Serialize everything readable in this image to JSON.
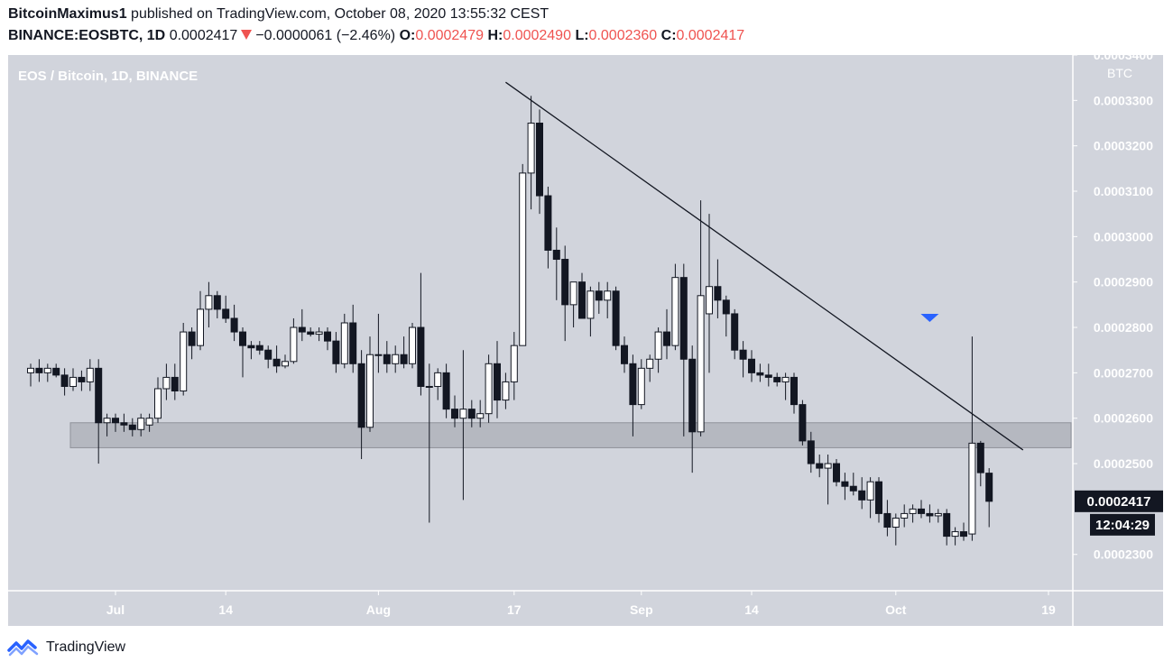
{
  "header": {
    "author": "BitcoinMaximus1",
    "published_text": "published on TradingView.com, October 08, 2020 13:55:32 CEST",
    "symbol": "BINANCE:EOSBTC, 1D",
    "last": "0.0002417",
    "change": "−0.0000061 (−2.46%)",
    "o_label": "O:",
    "o": "0.0002479",
    "h_label": "H:",
    "h": "0.0002490",
    "l_label": "L:",
    "l": "0.0002360",
    "c_label": "C:",
    "c": "0.0002417"
  },
  "footer": {
    "brand": "TradingView"
  },
  "colors": {
    "plot_bg": "#d1d4dc",
    "zone": "#b2b5be",
    "marker": "#2962ff",
    "down": "#ef5350"
  },
  "chart_data": {
    "type": "candlestick",
    "title": "EOS / Bitcoin, 1D, BINANCE",
    "currency_label": "BTC",
    "ylim": [
      0.000222,
      0.00034
    ],
    "y_ticks": [
      "0.0003400",
      "0.0003300",
      "0.0003200",
      "0.0003100",
      "0.0003000",
      "0.0002900",
      "0.0002800",
      "0.0002700",
      "0.0002600",
      "0.0002500",
      "0.0002300"
    ],
    "x_ticks": [
      {
        "label": "Jul",
        "date": "2020-07-01"
      },
      {
        "label": "14",
        "date": "2020-07-14"
      },
      {
        "label": "Aug",
        "date": "2020-08-01"
      },
      {
        "label": "17",
        "date": "2020-08-17"
      },
      {
        "label": "Sep",
        "date": "2020-09-01"
      },
      {
        "label": "14",
        "date": "2020-09-14"
      },
      {
        "label": "Oct",
        "date": "2020-10-01"
      },
      {
        "label": "19",
        "date": "2020-10-19"
      }
    ],
    "price_label": "0.0002417",
    "countdown_label": "12:04:29",
    "support_zone": [
      0.0002535,
      0.000259
    ],
    "trendline": [
      {
        "date": "2020-08-16",
        "price": 0.000334
      },
      {
        "date": "2020-10-16",
        "price": 0.000253
      }
    ],
    "marker": {
      "date": "2020-10-05",
      "price": 0.00028
    },
    "candles": [
      {
        "date": "2020-06-21",
        "o": 0.00027,
        "h": 0.000272,
        "l": 0.000267,
        "c": 0.000271
      },
      {
        "date": "2020-06-22",
        "o": 0.000271,
        "h": 0.000273,
        "l": 0.000268,
        "c": 0.00027
      },
      {
        "date": "2020-06-23",
        "o": 0.00027,
        "h": 0.000272,
        "l": 0.000268,
        "c": 0.000271
      },
      {
        "date": "2020-06-24",
        "o": 0.000271,
        "h": 0.000272,
        "l": 0.000269,
        "c": 0.0002695
      },
      {
        "date": "2020-06-25",
        "o": 0.0002695,
        "h": 0.000271,
        "l": 0.000265,
        "c": 0.000267
      },
      {
        "date": "2020-06-26",
        "o": 0.000267,
        "h": 0.000271,
        "l": 0.000266,
        "c": 0.000269
      },
      {
        "date": "2020-06-27",
        "o": 0.000269,
        "h": 0.0002705,
        "l": 0.000266,
        "c": 0.000268
      },
      {
        "date": "2020-06-28",
        "o": 0.000268,
        "h": 0.000273,
        "l": 0.000266,
        "c": 0.000271
      },
      {
        "date": "2020-06-29",
        "o": 0.000271,
        "h": 0.000273,
        "l": 0.00025,
        "c": 0.000259
      },
      {
        "date": "2020-06-30",
        "o": 0.000259,
        "h": 0.000261,
        "l": 0.000256,
        "c": 0.00026
      },
      {
        "date": "2020-07-01",
        "o": 0.00026,
        "h": 0.000261,
        "l": 0.000257,
        "c": 0.000259
      },
      {
        "date": "2020-07-02",
        "o": 0.000259,
        "h": 0.000261,
        "l": 0.000257,
        "c": 0.0002585
      },
      {
        "date": "2020-07-03",
        "o": 0.0002585,
        "h": 0.00026,
        "l": 0.000256,
        "c": 0.0002575
      },
      {
        "date": "2020-07-04",
        "o": 0.0002575,
        "h": 0.000261,
        "l": 0.000256,
        "c": 0.00026
      },
      {
        "date": "2020-07-05",
        "o": 0.0002585,
        "h": 0.000261,
        "l": 0.000257,
        "c": 0.00026
      },
      {
        "date": "2020-07-06",
        "o": 0.00026,
        "h": 0.000269,
        "l": 0.000259,
        "c": 0.0002665
      },
      {
        "date": "2020-07-07",
        "o": 0.0002665,
        "h": 0.000272,
        "l": 0.000264,
        "c": 0.000269
      },
      {
        "date": "2020-07-08",
        "o": 0.000269,
        "h": 0.000272,
        "l": 0.000264,
        "c": 0.000266
      },
      {
        "date": "2020-07-09",
        "o": 0.000266,
        "h": 0.000281,
        "l": 0.000265,
        "c": 0.000279
      },
      {
        "date": "2020-07-10",
        "o": 0.000279,
        "h": 0.00028,
        "l": 0.000273,
        "c": 0.000276
      },
      {
        "date": "2020-07-11",
        "o": 0.000276,
        "h": 0.000288,
        "l": 0.000275,
        "c": 0.000284
      },
      {
        "date": "2020-07-12",
        "o": 0.000284,
        "h": 0.00029,
        "l": 0.00028,
        "c": 0.000287
      },
      {
        "date": "2020-07-13",
        "o": 0.000287,
        "h": 0.000288,
        "l": 0.000282,
        "c": 0.000284
      },
      {
        "date": "2020-07-14",
        "o": 0.000284,
        "h": 0.000287,
        "l": 0.000281,
        "c": 0.000282
      },
      {
        "date": "2020-07-15",
        "o": 0.000282,
        "h": 0.000285,
        "l": 0.000277,
        "c": 0.000279
      },
      {
        "date": "2020-07-16",
        "o": 0.000279,
        "h": 0.00028,
        "l": 0.000269,
        "c": 0.000276
      },
      {
        "date": "2020-07-17",
        "o": 0.000276,
        "h": 0.000277,
        "l": 0.000273,
        "c": 0.0002755
      },
      {
        "date": "2020-07-18",
        "o": 0.000276,
        "h": 0.000277,
        "l": 0.000274,
        "c": 0.000275
      },
      {
        "date": "2020-07-19",
        "o": 0.000275,
        "h": 0.000276,
        "l": 0.000271,
        "c": 0.000273
      },
      {
        "date": "2020-07-20",
        "o": 0.000273,
        "h": 0.000276,
        "l": 0.00027,
        "c": 0.0002715
      },
      {
        "date": "2020-07-21",
        "o": 0.0002715,
        "h": 0.000274,
        "l": 0.000271,
        "c": 0.0002725
      },
      {
        "date": "2020-07-22",
        "o": 0.0002725,
        "h": 0.000282,
        "l": 0.000272,
        "c": 0.00028
      },
      {
        "date": "2020-07-23",
        "o": 0.00028,
        "h": 0.000284,
        "l": 0.000277,
        "c": 0.000279
      },
      {
        "date": "2020-07-24",
        "o": 0.000279,
        "h": 0.00028,
        "l": 0.000278,
        "c": 0.0002785
      },
      {
        "date": "2020-07-25",
        "o": 0.0002785,
        "h": 0.00028,
        "l": 0.000277,
        "c": 0.000279
      },
      {
        "date": "2020-07-26",
        "o": 0.000279,
        "h": 0.00028,
        "l": 0.000275,
        "c": 0.000277
      },
      {
        "date": "2020-07-27",
        "o": 0.000277,
        "h": 0.000279,
        "l": 0.00027,
        "c": 0.000272
      },
      {
        "date": "2020-07-28",
        "o": 0.000272,
        "h": 0.000283,
        "l": 0.000271,
        "c": 0.000281
      },
      {
        "date": "2020-07-29",
        "o": 0.000281,
        "h": 0.000285,
        "l": 0.00027,
        "c": 0.000272
      },
      {
        "date": "2020-07-30",
        "o": 0.000272,
        "h": 0.000275,
        "l": 0.000251,
        "c": 0.000258
      },
      {
        "date": "2020-07-31",
        "o": 0.000258,
        "h": 0.000278,
        "l": 0.000257,
        "c": 0.000274
      },
      {
        "date": "2020-08-01",
        "o": 0.000274,
        "h": 0.000283,
        "l": 0.00027,
        "c": 0.000274
      },
      {
        "date": "2020-08-02",
        "o": 0.000274,
        "h": 0.000277,
        "l": 0.00027,
        "c": 0.000272
      },
      {
        "date": "2020-08-03",
        "o": 0.000272,
        "h": 0.000276,
        "l": 0.00027,
        "c": 0.000274
      },
      {
        "date": "2020-08-04",
        "o": 0.000274,
        "h": 0.000278,
        "l": 0.000271,
        "c": 0.000272
      },
      {
        "date": "2020-08-05",
        "o": 0.000272,
        "h": 0.000281,
        "l": 0.000271,
        "c": 0.00028
      },
      {
        "date": "2020-08-06",
        "o": 0.00028,
        "h": 0.000292,
        "l": 0.000265,
        "c": 0.000267
      },
      {
        "date": "2020-08-07",
        "o": 0.000267,
        "h": 0.000272,
        "l": 0.000237,
        "c": 0.000267
      },
      {
        "date": "2020-08-08",
        "o": 0.000267,
        "h": 0.000271,
        "l": 0.000264,
        "c": 0.00027
      },
      {
        "date": "2020-08-09",
        "o": 0.00027,
        "h": 0.000272,
        "l": 0.00026,
        "c": 0.000262
      },
      {
        "date": "2020-08-10",
        "o": 0.000262,
        "h": 0.000265,
        "l": 0.000258,
        "c": 0.00026
      },
      {
        "date": "2020-08-11",
        "o": 0.00026,
        "h": 0.000275,
        "l": 0.000242,
        "c": 0.000262
      },
      {
        "date": "2020-08-12",
        "o": 0.000262,
        "h": 0.000264,
        "l": 0.000258,
        "c": 0.00026
      },
      {
        "date": "2020-08-13",
        "o": 0.00026,
        "h": 0.000264,
        "l": 0.000258,
        "c": 0.000261
      },
      {
        "date": "2020-08-14",
        "o": 0.000261,
        "h": 0.000274,
        "l": 0.000259,
        "c": 0.000272
      },
      {
        "date": "2020-08-15",
        "o": 0.000272,
        "h": 0.000277,
        "l": 0.00026,
        "c": 0.000264
      },
      {
        "date": "2020-08-16",
        "o": 0.000264,
        "h": 0.00027,
        "l": 0.000262,
        "c": 0.000268
      },
      {
        "date": "2020-08-17",
        "o": 0.000268,
        "h": 0.000279,
        "l": 0.000264,
        "c": 0.000276
      },
      {
        "date": "2020-08-18",
        "o": 0.000276,
        "h": 0.000316,
        "l": 0.000276,
        "c": 0.000314
      },
      {
        "date": "2020-08-19",
        "o": 0.000314,
        "h": 0.000331,
        "l": 0.000306,
        "c": 0.000325
      },
      {
        "date": "2020-08-20",
        "o": 0.000325,
        "h": 0.000328,
        "l": 0.000305,
        "c": 0.000309
      },
      {
        "date": "2020-08-21",
        "o": 0.000309,
        "h": 0.000311,
        "l": 0.000293,
        "c": 0.000297
      },
      {
        "date": "2020-08-22",
        "o": 0.000297,
        "h": 0.000302,
        "l": 0.000286,
        "c": 0.000295
      },
      {
        "date": "2020-08-23",
        "o": 0.000295,
        "h": 0.000298,
        "l": 0.000277,
        "c": 0.000285
      },
      {
        "date": "2020-08-24",
        "o": 0.000285,
        "h": 0.00029,
        "l": 0.00028,
        "c": 0.00029
      },
      {
        "date": "2020-08-25",
        "o": 0.00029,
        "h": 0.000292,
        "l": 0.000282,
        "c": 0.000282
      },
      {
        "date": "2020-08-26",
        "o": 0.000282,
        "h": 0.000289,
        "l": 0.000278,
        "c": 0.000288
      },
      {
        "date": "2020-08-27",
        "o": 0.000288,
        "h": 0.00029,
        "l": 0.000283,
        "c": 0.000286
      },
      {
        "date": "2020-08-28",
        "o": 0.000286,
        "h": 0.00029,
        "l": 0.000282,
        "c": 0.000288
      },
      {
        "date": "2020-08-29",
        "o": 0.000288,
        "h": 0.000289,
        "l": 0.000275,
        "c": 0.000276
      },
      {
        "date": "2020-08-30",
        "o": 0.000276,
        "h": 0.000278,
        "l": 0.00027,
        "c": 0.000272
      },
      {
        "date": "2020-08-31",
        "o": 0.000272,
        "h": 0.000274,
        "l": 0.000256,
        "c": 0.000263
      },
      {
        "date": "2020-09-01",
        "o": 0.000263,
        "h": 0.000273,
        "l": 0.000262,
        "c": 0.000271
      },
      {
        "date": "2020-09-02",
        "o": 0.000271,
        "h": 0.000274,
        "l": 0.000268,
        "c": 0.000273
      },
      {
        "date": "2020-09-03",
        "o": 0.000273,
        "h": 0.00028,
        "l": 0.00027,
        "c": 0.000279
      },
      {
        "date": "2020-09-04",
        "o": 0.000279,
        "h": 0.000284,
        "l": 0.000273,
        "c": 0.000276
      },
      {
        "date": "2020-09-05",
        "o": 0.000276,
        "h": 0.000294,
        "l": 0.000275,
        "c": 0.000291
      },
      {
        "date": "2020-09-06",
        "o": 0.000291,
        "h": 0.000294,
        "l": 0.000256,
        "c": 0.000273
      },
      {
        "date": "2020-09-07",
        "o": 0.000273,
        "h": 0.000276,
        "l": 0.000248,
        "c": 0.000257
      },
      {
        "date": "2020-09-08",
        "o": 0.000257,
        "h": 0.000308,
        "l": 0.000256,
        "c": 0.000287
      },
      {
        "date": "2020-09-09",
        "o": 0.000283,
        "h": 0.000305,
        "l": 0.00027,
        "c": 0.000289
      },
      {
        "date": "2020-09-10",
        "o": 0.000289,
        "h": 0.000295,
        "l": 0.000282,
        "c": 0.000286
      },
      {
        "date": "2020-09-11",
        "o": 0.000286,
        "h": 0.000287,
        "l": 0.000278,
        "c": 0.000283
      },
      {
        "date": "2020-09-12",
        "o": 0.000283,
        "h": 0.000284,
        "l": 0.000273,
        "c": 0.000275
      },
      {
        "date": "2020-09-13",
        "o": 0.000275,
        "h": 0.000277,
        "l": 0.000269,
        "c": 0.000273
      },
      {
        "date": "2020-09-14",
        "o": 0.000273,
        "h": 0.000275,
        "l": 0.000268,
        "c": 0.00027
      },
      {
        "date": "2020-09-15",
        "o": 0.00027,
        "h": 0.000272,
        "l": 0.000268,
        "c": 0.0002695
      },
      {
        "date": "2020-09-16",
        "o": 0.0002695,
        "h": 0.000272,
        "l": 0.000267,
        "c": 0.000269
      },
      {
        "date": "2020-09-17",
        "o": 0.000269,
        "h": 0.00027,
        "l": 0.000267,
        "c": 0.000268
      },
      {
        "date": "2020-09-18",
        "o": 0.000268,
        "h": 0.00027,
        "l": 0.000264,
        "c": 0.000269
      },
      {
        "date": "2020-09-19",
        "o": 0.000269,
        "h": 0.00027,
        "l": 0.000261,
        "c": 0.000263
      },
      {
        "date": "2020-09-20",
        "o": 0.000263,
        "h": 0.000264,
        "l": 0.000254,
        "c": 0.000255
      },
      {
        "date": "2020-09-21",
        "o": 0.000255,
        "h": 0.000257,
        "l": 0.000248,
        "c": 0.00025
      },
      {
        "date": "2020-09-22",
        "o": 0.00025,
        "h": 0.000252,
        "l": 0.000247,
        "c": 0.000249
      },
      {
        "date": "2020-09-23",
        "o": 0.000249,
        "h": 0.000252,
        "l": 0.000241,
        "c": 0.00025
      },
      {
        "date": "2020-09-24",
        "o": 0.00025,
        "h": 0.000251,
        "l": 0.000245,
        "c": 0.000246
      },
      {
        "date": "2020-09-25",
        "o": 0.000246,
        "h": 0.000248,
        "l": 0.000242,
        "c": 0.000245
      },
      {
        "date": "2020-09-26",
        "o": 0.000245,
        "h": 0.000248,
        "l": 0.000243,
        "c": 0.000244
      },
      {
        "date": "2020-09-27",
        "o": 0.000244,
        "h": 0.000247,
        "l": 0.00024,
        "c": 0.000242
      },
      {
        "date": "2020-09-28",
        "o": 0.000242,
        "h": 0.000247,
        "l": 0.000238,
        "c": 0.000246
      },
      {
        "date": "2020-09-29",
        "o": 0.000246,
        "h": 0.000247,
        "l": 0.000237,
        "c": 0.000239
      },
      {
        "date": "2020-09-30",
        "o": 0.000239,
        "h": 0.000242,
        "l": 0.000234,
        "c": 0.000236
      },
      {
        "date": "2020-10-01",
        "o": 0.000236,
        "h": 0.000239,
        "l": 0.000232,
        "c": 0.000238
      },
      {
        "date": "2020-10-02",
        "o": 0.000238,
        "h": 0.000241,
        "l": 0.000236,
        "c": 0.000239
      },
      {
        "date": "2020-10-03",
        "o": 0.000239,
        "h": 0.000241,
        "l": 0.000237,
        "c": 0.00024
      },
      {
        "date": "2020-10-04",
        "o": 0.00024,
        "h": 0.000242,
        "l": 0.000238,
        "c": 0.000239
      },
      {
        "date": "2020-10-05",
        "o": 0.000239,
        "h": 0.000241,
        "l": 0.000237,
        "c": 0.0002385
      },
      {
        "date": "2020-10-06",
        "o": 0.0002385,
        "h": 0.00024,
        "l": 0.000237,
        "c": 0.000239
      },
      {
        "date": "2020-10-07",
        "o": 0.000239,
        "h": 0.00024,
        "l": 0.000232,
        "c": 0.000234
      },
      {
        "date": "2020-10-08",
        "o": 0.000234,
        "h": 0.000236,
        "l": 0.000232,
        "c": 0.000235
      },
      {
        "date": "2020-10-09",
        "o": 0.000235,
        "h": 0.000237,
        "l": 0.000233,
        "c": 0.000234
      },
      {
        "date": "2020-10-10",
        "o": 0.0002345,
        "h": 0.000278,
        "l": 0.000233,
        "c": 0.0002545
      },
      {
        "date": "2020-10-11",
        "o": 0.0002545,
        "h": 0.000255,
        "l": 0.000245,
        "c": 0.000248
      },
      {
        "date": "2020-10-12",
        "o": 0.0002479,
        "h": 0.000249,
        "l": 0.000236,
        "c": 0.0002417
      }
    ]
  }
}
